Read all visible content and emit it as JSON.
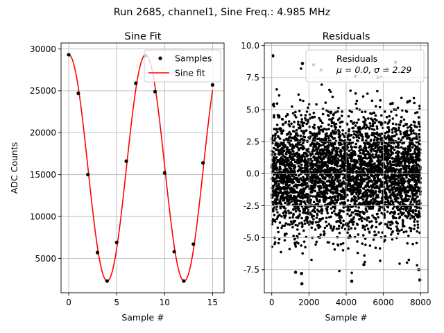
{
  "figure": {
    "suptitle": "Run 2685, channel1, Sine Freq.: 4.985 MHz"
  },
  "chart_data": [
    {
      "type": "line",
      "title": "Sine Fit",
      "xlabel": "Sample #",
      "ylabel": "ADC Counts",
      "xlim": [
        -0.8,
        16.2
      ],
      "ylim": [
        900,
        30700
      ],
      "xticks": [
        0,
        5,
        10,
        15
      ],
      "yticks": [
        5000,
        10000,
        15000,
        20000,
        25000,
        30000
      ],
      "grid": true,
      "legend_location": "top-right",
      "series": [
        {
          "name": "Samples",
          "kind": "scatter",
          "color": "#000000",
          "x": [
            0,
            1,
            2,
            3,
            4,
            5,
            6,
            7,
            8,
            9,
            10,
            11,
            12,
            13,
            14,
            15
          ],
          "y": [
            29300,
            24700,
            15000,
            5700,
            2300,
            6900,
            16600,
            25900,
            29200,
            24900,
            15200,
            5800,
            2300,
            6700,
            16400,
            25700
          ]
        },
        {
          "name": "Sine fit",
          "kind": "line",
          "color": "#ff0000",
          "model": {
            "amplitude": 13500,
            "offset": 15800,
            "period_samples": 8.02,
            "phase_rad": 0.0
          },
          "x_range": [
            0,
            15
          ]
        }
      ]
    },
    {
      "type": "scatter",
      "title": "Residuals",
      "xlabel": "Sample #",
      "ylabel": "",
      "xlim": [
        -400,
        8400
      ],
      "ylim": [
        -9.3,
        10.2
      ],
      "xticks": [
        0,
        2000,
        4000,
        6000,
        8000
      ],
      "yticks": [
        -7.5,
        -5.0,
        -2.5,
        0.0,
        2.5,
        5.0,
        7.5,
        10.0
      ],
      "grid": true,
      "legend_location": "top-right",
      "legend_entry": {
        "line1": "Residuals",
        "line2": "μ = 0.0, σ = 2.29"
      },
      "series": [
        {
          "name": "Residuals",
          "color": "#000000",
          "n_points": 8000,
          "mean": 0.0,
          "std": 2.29,
          "x_range": [
            0,
            8000
          ],
          "outliers": [
            {
              "x": 60,
              "y": 9.2
            },
            {
              "x": 1650,
              "y": 8.6
            },
            {
              "x": 2250,
              "y": 8.5
            },
            {
              "x": 6650,
              "y": 8.7
            },
            {
              "x": 1620,
              "y": -8.6
            },
            {
              "x": 4300,
              "y": -8.4
            },
            {
              "x": 7960,
              "y": -8.3
            },
            {
              "x": 1280,
              "y": -7.7
            },
            {
              "x": 7900,
              "y": -7.5
            },
            {
              "x": 2650,
              "y": 8.1
            },
            {
              "x": 4500,
              "y": 7.6
            },
            {
              "x": 5700,
              "y": 7.5
            },
            {
              "x": 1600,
              "y": -7.8
            },
            {
              "x": 4950,
              "y": -7.1
            }
          ]
        }
      ]
    }
  ]
}
